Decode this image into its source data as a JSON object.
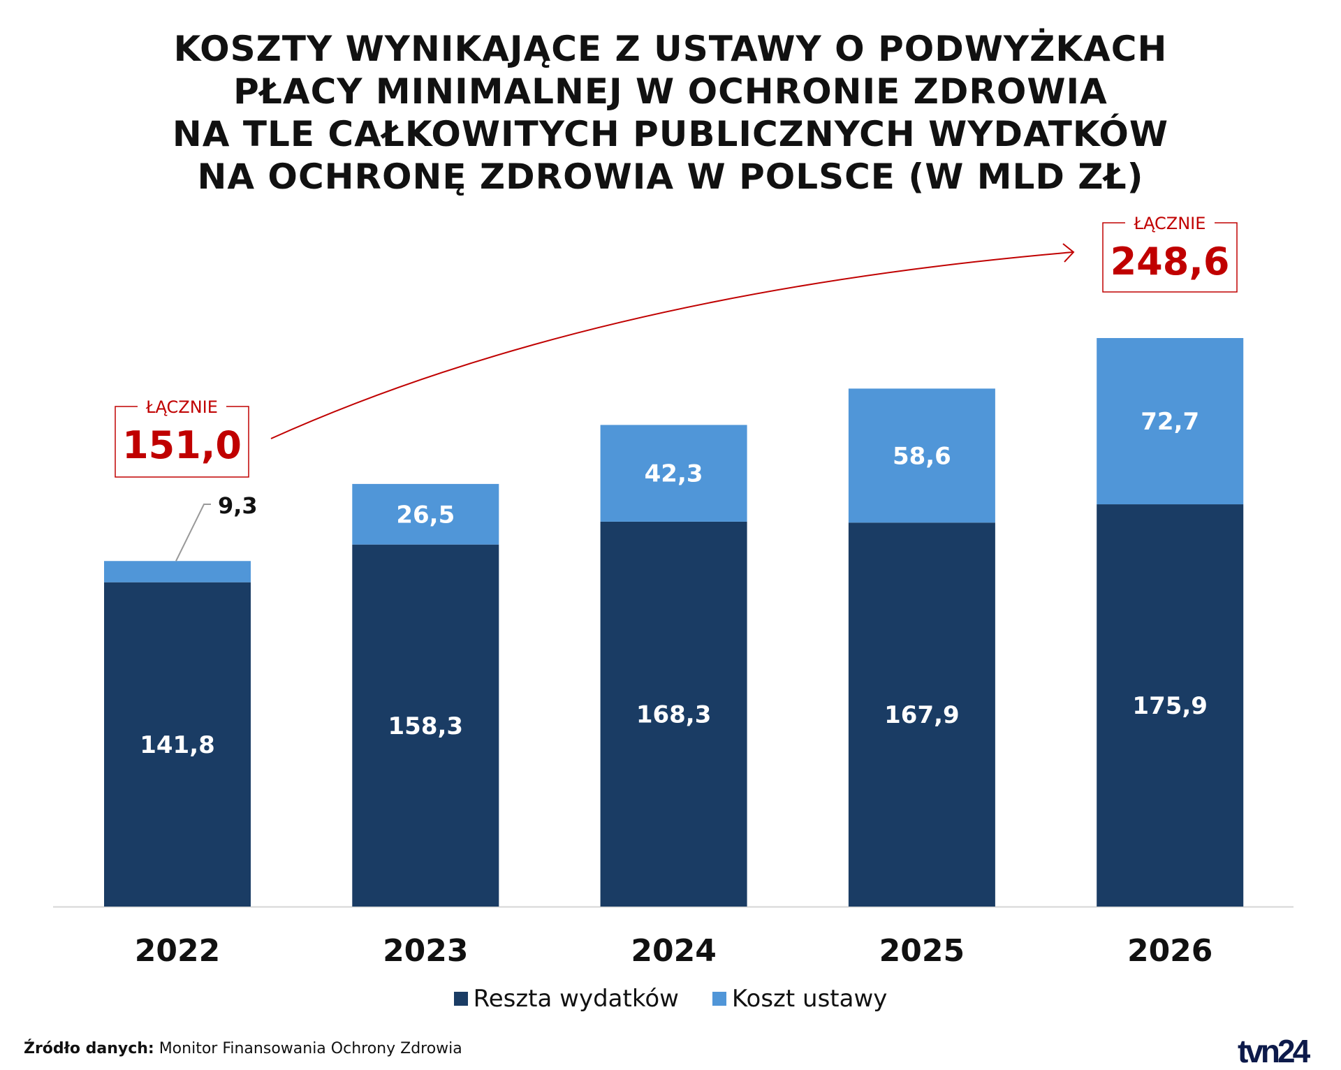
{
  "title_lines": [
    "KOSZTY WYNIKAJĄCE Z USTAWY O PODWYŻKACH",
    "PŁACY MINIMALNEJ W OCHRONIE ZDROWIA",
    "NA TLE CAŁKOWITYCH PUBLICZNYCH WYDATKÓW",
    "NA OCHRONĘ ZDROWIA W POLSCE (W MLD ZŁ)"
  ],
  "chart_data": {
    "type": "bar",
    "stacked": true,
    "title": "KOSZTY WYNIKAJĄCE Z USTAWY O PODWYŻKACH PŁACY MINIMALNEJ W OCHRONIE ZDROWIA NA TLE CAŁKOWITYCH PUBLICZNYCH WYDATKÓW NA OCHRONĘ ZDROWIA W POLSCE (W MLD ZŁ)",
    "categories": [
      "2022",
      "2023",
      "2024",
      "2025",
      "2026"
    ],
    "series": [
      {
        "name": "Reszta wydatków",
        "color": "#1a3c64",
        "values": [
          141.8,
          158.3,
          168.3,
          167.9,
          175.9
        ],
        "labels": [
          "141,8",
          "158,3",
          "168,3",
          "167,9",
          "175,9"
        ]
      },
      {
        "name": "Koszt ustawy",
        "color": "#5096d8",
        "values": [
          9.3,
          26.5,
          42.3,
          58.6,
          72.7
        ],
        "labels": [
          "9,3",
          "26,5",
          "42,3",
          "58,6",
          "72,7"
        ]
      }
    ],
    "ylim": [
      0,
      248.6
    ],
    "grid": false,
    "legend": "bottom-center",
    "annotations": [
      {
        "label": "ŁĄCZNIE",
        "value": "151,0",
        "category": "2022"
      },
      {
        "label": "ŁĄCZNIE",
        "value": "248,6",
        "category": "2026"
      }
    ],
    "accent_color": "#c00000"
  },
  "source_label": "Źródło danych:",
  "source_text": "Monitor Finansowania Ochrony Zdrowia",
  "logo": "tvn24"
}
